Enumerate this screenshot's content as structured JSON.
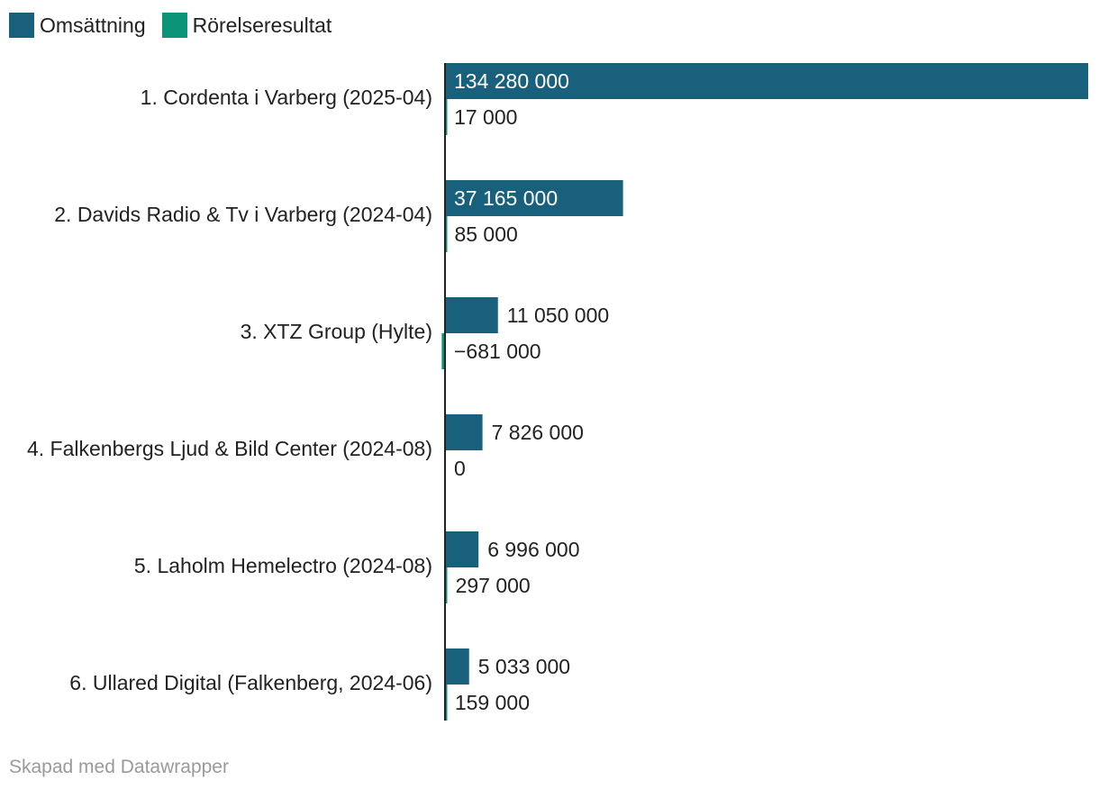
{
  "chart_data": {
    "type": "bar",
    "orientation": "horizontal",
    "categories": [
      "1. Cordenta i Varberg (2025-04)",
      "2. Davids Radio & Tv i Varberg (2024-04)",
      "3. XTZ Group (Hylte)",
      "4. Falkenbergs Ljud & Bild Center (2024-08)",
      "5. Laholm Hemelectro (2024-08)",
      "6. Ullared Digital (Falkenberg, 2024-06)"
    ],
    "series": [
      {
        "name": "Omsättning",
        "color": "#18607c",
        "values": [
          134280000,
          37165000,
          11050000,
          7826000,
          6996000,
          5033000
        ],
        "labels": [
          "134 280 000",
          "37 165 000",
          "11 050 000",
          "7 826 000",
          "6 996 000",
          "5 033 000"
        ]
      },
      {
        "name": "Rörelseresultat",
        "color": "#0c9479",
        "values": [
          17000,
          85000,
          -681000,
          0,
          297000,
          159000
        ],
        "labels": [
          "17 000",
          "85 000",
          "−681 000",
          "0",
          "297 000",
          "159 000"
        ]
      }
    ],
    "xlim": [
      0,
      134280000
    ],
    "legend": "top-left"
  },
  "footer": "Skapad med Datawrapper"
}
